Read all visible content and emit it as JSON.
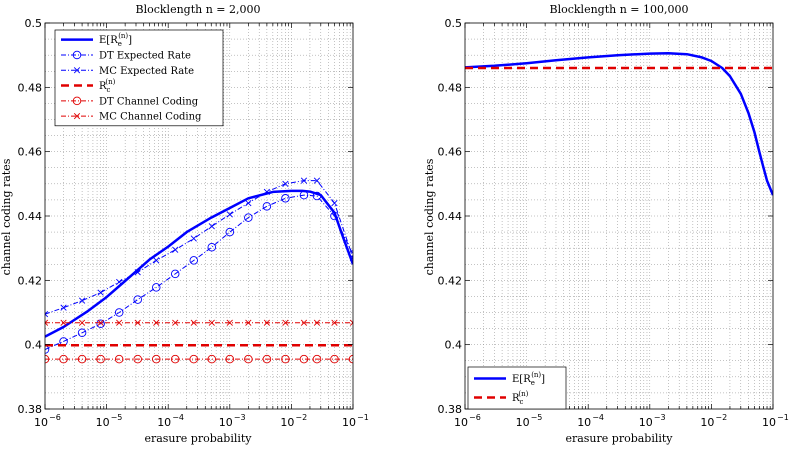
{
  "chart_data": [
    {
      "type": "line",
      "title": "Blocklength n = 2,000",
      "xlabel": "erasure probability",
      "ylabel": "channel coding rates",
      "xscale": "log",
      "xlim": [
        1e-06,
        0.1
      ],
      "ylim": [
        0.38,
        0.5
      ],
      "x_tick_labels": [
        "10",
        "10",
        "10",
        "10",
        "10",
        "10"
      ],
      "x_tick_exponents": [
        "−6",
        "−5",
        "−4",
        "−3",
        "−2",
        "−1"
      ],
      "y_tick_labels": [
        "0.38",
        "0.4",
        "0.42",
        "0.44",
        "0.46",
        "0.48",
        "0.5"
      ],
      "y_ticks": [
        0.38,
        0.4,
        0.42,
        0.44,
        0.46,
        0.48,
        0.5
      ],
      "grid": true,
      "legend_position": "top-left",
      "series": [
        {
          "name": "E[R_e^(n)]",
          "legend_main": "E[R",
          "legend_sub": "e",
          "legend_sup": "(n)",
          "legend_tail": "]",
          "color": "#0000ff",
          "style": "solid",
          "width": 2.5,
          "marker": "none",
          "x": [
            1e-06,
            2e-06,
            5e-06,
            1e-05,
            2e-05,
            5e-05,
            0.0001,
            0.0002,
            0.0005,
            0.001,
            0.002,
            0.005,
            0.01,
            0.015,
            0.02,
            0.03,
            0.05,
            0.07,
            0.1
          ],
          "y": [
            0.4025,
            0.4055,
            0.4105,
            0.4148,
            0.4198,
            0.4265,
            0.4305,
            0.435,
            0.4395,
            0.4425,
            0.4455,
            0.4475,
            0.4478,
            0.4478,
            0.4476,
            0.4465,
            0.441,
            0.433,
            0.425
          ]
        },
        {
          "name": "DT Expected Rate",
          "color": "#0000ff",
          "style": "dashdot",
          "width": 1,
          "marker": "circle",
          "x": [
            1e-06,
            2e-06,
            4e-06,
            8e-06,
            1.6e-05,
            3.2e-05,
            6.4e-05,
            0.00013,
            0.00026,
            0.00051,
            0.001,
            0.002,
            0.004,
            0.008,
            0.016,
            0.026,
            0.05,
            0.1
          ],
          "y": [
            0.3985,
            0.401,
            0.4037,
            0.4065,
            0.41,
            0.414,
            0.4178,
            0.422,
            0.4262,
            0.4303,
            0.435,
            0.4395,
            0.443,
            0.4455,
            0.4465,
            0.4462,
            0.44,
            0.428
          ]
        },
        {
          "name": "MC Expected Rate",
          "color": "#0000ff",
          "style": "dashdot",
          "width": 1,
          "marker": "x",
          "x": [
            1e-06,
            2e-06,
            4e-06,
            8e-06,
            1.6e-05,
            3.2e-05,
            6.4e-05,
            0.00013,
            0.00026,
            0.00051,
            0.001,
            0.002,
            0.004,
            0.008,
            0.016,
            0.026,
            0.05,
            0.1
          ],
          "y": [
            0.4095,
            0.4115,
            0.4137,
            0.4162,
            0.4195,
            0.4225,
            0.4262,
            0.4295,
            0.433,
            0.4368,
            0.4405,
            0.444,
            0.4475,
            0.45,
            0.451,
            0.451,
            0.444,
            0.427
          ]
        },
        {
          "name": "R_c^(n)",
          "legend_main": "R",
          "legend_sub": "c",
          "legend_sup": "(n)",
          "legend_tail": "",
          "color": "#e00000",
          "style": "dashed",
          "width": 2.5,
          "marker": "none",
          "x": [
            1e-06,
            0.1
          ],
          "y": [
            0.3998,
            0.3998
          ]
        },
        {
          "name": "DT Channel Coding",
          "color": "#e00000",
          "style": "dashdot",
          "width": 1,
          "marker": "circle",
          "x": [
            1e-06,
            2e-06,
            4e-06,
            8e-06,
            1.6e-05,
            3.2e-05,
            6.4e-05,
            0.00013,
            0.00026,
            0.00051,
            0.001,
            0.002,
            0.004,
            0.008,
            0.016,
            0.026,
            0.05,
            0.1
          ],
          "y": [
            0.3955,
            0.3955,
            0.3955,
            0.3955,
            0.3955,
            0.3955,
            0.3955,
            0.3955,
            0.3955,
            0.3955,
            0.3955,
            0.3955,
            0.3955,
            0.3955,
            0.3955,
            0.3955,
            0.3955,
            0.3955
          ]
        },
        {
          "name": "MC Channel Coding",
          "color": "#e00000",
          "style": "dashdot",
          "width": 1,
          "marker": "x",
          "x": [
            1e-06,
            2e-06,
            4e-06,
            8e-06,
            1.6e-05,
            3.2e-05,
            6.4e-05,
            0.00013,
            0.00026,
            0.00051,
            0.001,
            0.002,
            0.004,
            0.008,
            0.016,
            0.026,
            0.05,
            0.1
          ],
          "y": [
            0.4068,
            0.4068,
            0.4068,
            0.4068,
            0.4068,
            0.4068,
            0.4068,
            0.4068,
            0.4068,
            0.4068,
            0.4068,
            0.4068,
            0.4068,
            0.4068,
            0.4068,
            0.4068,
            0.4068,
            0.4068
          ]
        }
      ]
    },
    {
      "type": "line",
      "title": "Blocklength n = 100,000",
      "xlabel": "erasure probability",
      "ylabel": "channel coding rates",
      "xscale": "log",
      "xlim": [
        1e-06,
        0.1
      ],
      "ylim": [
        0.38,
        0.5
      ],
      "x_tick_labels": [
        "10",
        "10",
        "10",
        "10",
        "10",
        "10"
      ],
      "x_tick_exponents": [
        "−6",
        "−5",
        "−4",
        "−3",
        "−2",
        "−1"
      ],
      "y_tick_labels": [
        "0.38",
        "0.4",
        "0.42",
        "0.44",
        "0.46",
        "0.48",
        "0.5"
      ],
      "y_ticks": [
        0.38,
        0.4,
        0.42,
        0.44,
        0.46,
        0.48,
        0.5
      ],
      "grid": true,
      "legend_position": "bottom-left",
      "series": [
        {
          "name": "E[R_e^(n)]",
          "legend_main": "E[R",
          "legend_sub": "e",
          "legend_sup": "(n)",
          "legend_tail": "]",
          "color": "#0000ff",
          "style": "solid",
          "width": 2.5,
          "marker": "none",
          "x": [
            1e-06,
            3e-06,
            1e-05,
            3e-05,
            0.0001,
            0.0003,
            0.001,
            0.002,
            0.004,
            0.007,
            0.01,
            0.015,
            0.02,
            0.03,
            0.04,
            0.05,
            0.06,
            0.07,
            0.08,
            0.1
          ],
          "y": [
            0.4862,
            0.4867,
            0.4875,
            0.4884,
            0.4893,
            0.49,
            0.4905,
            0.4906,
            0.4903,
            0.4893,
            0.4882,
            0.486,
            0.4835,
            0.478,
            0.472,
            0.466,
            0.46,
            0.455,
            0.451,
            0.4465
          ]
        },
        {
          "name": "R_c^(n)",
          "legend_main": "R",
          "legend_sub": "c",
          "legend_sup": "(n)",
          "legend_tail": "",
          "color": "#e00000",
          "style": "dashed",
          "width": 2.5,
          "marker": "none",
          "x": [
            1e-06,
            0.1
          ],
          "y": [
            0.486,
            0.486
          ]
        }
      ]
    }
  ]
}
